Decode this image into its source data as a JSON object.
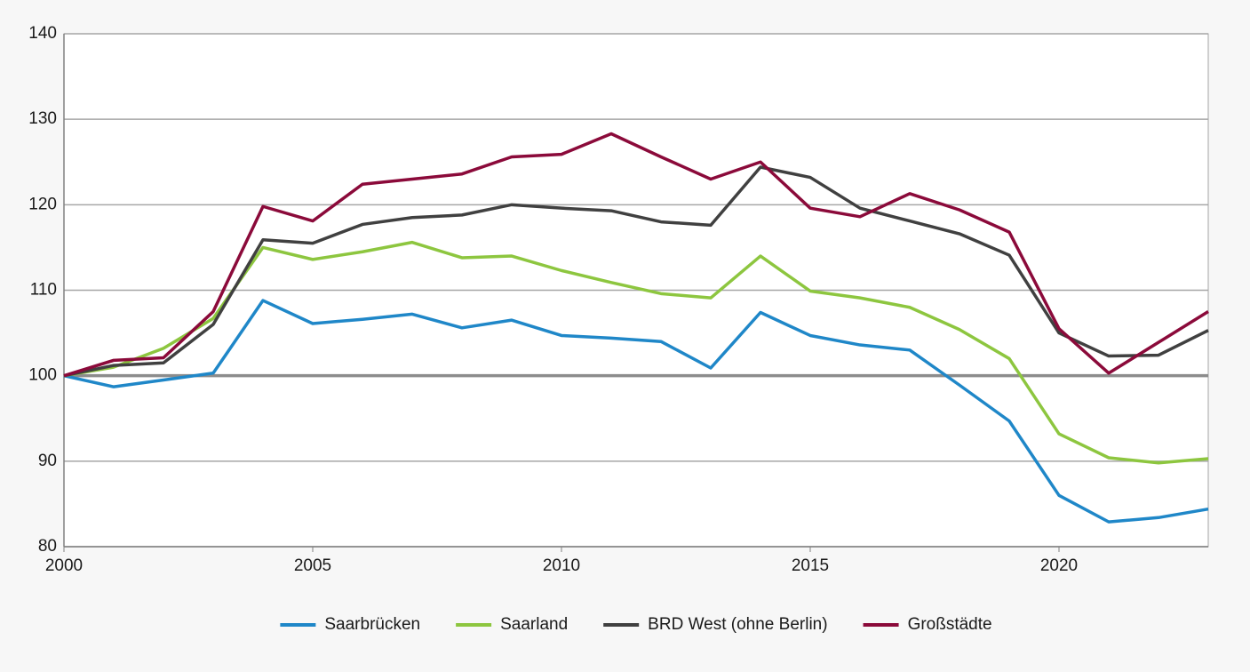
{
  "chart_data": {
    "type": "line",
    "x": [
      2000,
      2001,
      2002,
      2003,
      2004,
      2005,
      2006,
      2007,
      2008,
      2009,
      2010,
      2011,
      2012,
      2013,
      2014,
      2015,
      2016,
      2017,
      2018,
      2019,
      2020,
      2021,
      2022,
      2023
    ],
    "series": [
      {
        "name": "Saarbrücken",
        "color": "#1f87c8",
        "values": [
          100,
          98.7,
          99.5,
          100.3,
          108.8,
          106.1,
          106.6,
          107.2,
          105.6,
          106.5,
          104.7,
          104.4,
          104.0,
          100.9,
          107.4,
          104.7,
          103.6,
          103.0,
          98.9,
          94.7,
          86.0,
          82.9,
          83.4,
          84.4
        ]
      },
      {
        "name": "Saarland",
        "color": "#8dc63f",
        "values": [
          100,
          101.0,
          103.2,
          106.7,
          115.0,
          113.6,
          114.5,
          115.6,
          113.8,
          114.0,
          112.3,
          110.9,
          109.6,
          109.1,
          114.0,
          109.9,
          109.1,
          108.0,
          105.4,
          102.0,
          93.2,
          90.4,
          89.8,
          90.3
        ]
      },
      {
        "name": "BRD West (ohne Berlin)",
        "color": "#404040",
        "values": [
          100,
          101.2,
          101.5,
          106.0,
          115.9,
          115.5,
          117.7,
          118.5,
          118.8,
          120.0,
          119.6,
          119.3,
          118.0,
          117.6,
          124.4,
          123.2,
          119.6,
          118.1,
          116.6,
          114.1,
          105.0,
          102.3,
          102.4,
          105.3
        ]
      },
      {
        "name": "Großstädte",
        "color": "#8b0a3a",
        "values": [
          100,
          101.8,
          102.1,
          107.5,
          119.8,
          118.1,
          122.4,
          123.0,
          123.6,
          125.6,
          125.9,
          128.3,
          125.6,
          123.0,
          125.0,
          119.6,
          118.6,
          121.3,
          119.4,
          116.8,
          105.5,
          100.3,
          103.9,
          107.5
        ]
      }
    ],
    "baseline": 100,
    "xlim": [
      2000,
      2023
    ],
    "xticks": [
      2000,
      2005,
      2010,
      2015,
      2020
    ],
    "ylim": [
      80,
      140
    ],
    "yticks": [
      80,
      90,
      100,
      110,
      120,
      130,
      140
    ],
    "grid": true,
    "legend": "bottom"
  }
}
